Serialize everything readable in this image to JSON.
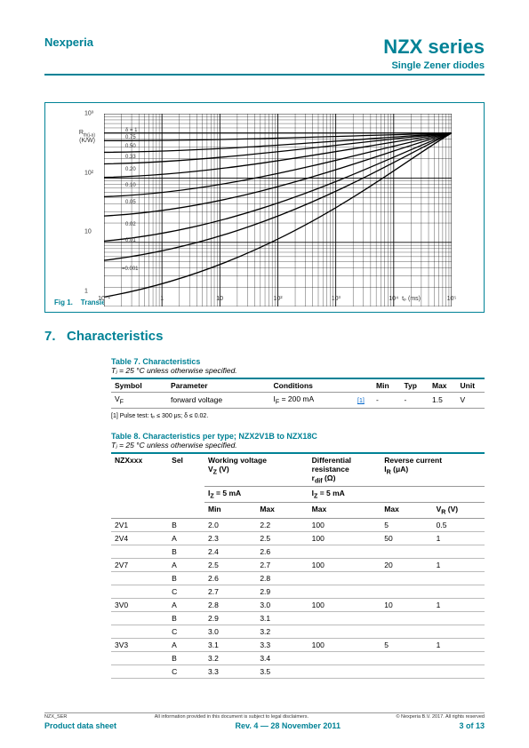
{
  "header": {
    "company": "Nexperia",
    "title": "NZX series",
    "subtitle": "Single Zener diodes"
  },
  "chart": {
    "type": "line-loglog",
    "code": "006aab001",
    "ylabel_html": "R<sub>th(j-a)</sub><br>(K/W)",
    "xlabel": "tₚ (ms)",
    "xlim": [
      0.1,
      100000
    ],
    "ylim": [
      1,
      1000
    ],
    "xticks": [
      "10⁻¹",
      "1",
      "10",
      "10²",
      "10³",
      "10⁴",
      "10⁵"
    ],
    "yticks": [
      "1",
      "10",
      "10²",
      "10³"
    ],
    "curve_labels": [
      "δ = 1",
      "0.75",
      "0.50",
      "0.33",
      "0.20",
      "0.10",
      "0.05",
      "0.02",
      "0.01",
      "=0.001"
    ],
    "grid_color": "#000",
    "line_color": "#000",
    "figcap_prefix": "Fig 1.",
    "figcap": "Transient thermal impedance from junction to ambient as a function of pulse duration; typical values"
  },
  "section": {
    "num": "7.",
    "title": "Characteristics"
  },
  "table7": {
    "title": "Table 7.    Characteristics",
    "subtitle": "Tⱼ = 25 °C unless otherwise specified.",
    "cols": [
      "Symbol",
      "Parameter",
      "Conditions",
      "",
      "Min",
      "Typ",
      "Max",
      "Unit"
    ],
    "rows": [
      [
        "V_F",
        "forward voltage",
        "I_F = 200 mA",
        "[1]",
        "-",
        "-",
        "1.5",
        "V"
      ]
    ],
    "footnote": "[1]   Pulse test: tₚ ≤ 300 μs; δ ≤ 0.02."
  },
  "table8": {
    "title": "Table 8.    Characteristics per type; NZX2V1B to NZX18C",
    "subtitle": "Tⱼ = 25 °C unless otherwise specified.",
    "h1": [
      "NZXxxx",
      "Sel",
      "Working voltage\nV_Z (V)",
      "Differential resistance\nr_dif (Ω)",
      "Reverse current\nI_R (μA)"
    ],
    "h2": [
      "",
      "",
      "I_Z = 5 mA",
      "I_Z = 5 mA",
      ""
    ],
    "h3": [
      "",
      "",
      "Min",
      "Max",
      "Max",
      "Max",
      "V_R (V)"
    ],
    "rows": [
      [
        "2V1",
        "B",
        "2.0",
        "2.2",
        "100",
        "5",
        "0.5"
      ],
      [
        "2V4",
        "A",
        "2.3",
        "2.5",
        "100",
        "50",
        "1"
      ],
      [
        "",
        "B",
        "2.4",
        "2.6",
        "",
        "",
        ""
      ],
      [
        "2V7",
        "A",
        "2.5",
        "2.7",
        "100",
        "20",
        "1"
      ],
      [
        "",
        "B",
        "2.6",
        "2.8",
        "",
        "",
        ""
      ],
      [
        "",
        "C",
        "2.7",
        "2.9",
        "",
        "",
        ""
      ],
      [
        "3V0",
        "A",
        "2.8",
        "3.0",
        "100",
        "10",
        "1"
      ],
      [
        "",
        "B",
        "2.9",
        "3.1",
        "",
        "",
        ""
      ],
      [
        "",
        "C",
        "3.0",
        "3.2",
        "",
        "",
        ""
      ],
      [
        "3V3",
        "A",
        "3.1",
        "3.3",
        "100",
        "5",
        "1"
      ],
      [
        "",
        "B",
        "3.2",
        "3.4",
        "",
        "",
        ""
      ],
      [
        "",
        "C",
        "3.3",
        "3.5",
        "",
        "",
        ""
      ]
    ]
  },
  "footer": {
    "docid": "NZX_SER",
    "disclaimer": "All information provided in this document is subject to legal disclaimers.",
    "copyright": "© Nexperia B.V. 2017. All rights reserved",
    "left": "Product data sheet",
    "center": "Rev. 4 — 28 November 2011",
    "right": "3 of 13"
  }
}
